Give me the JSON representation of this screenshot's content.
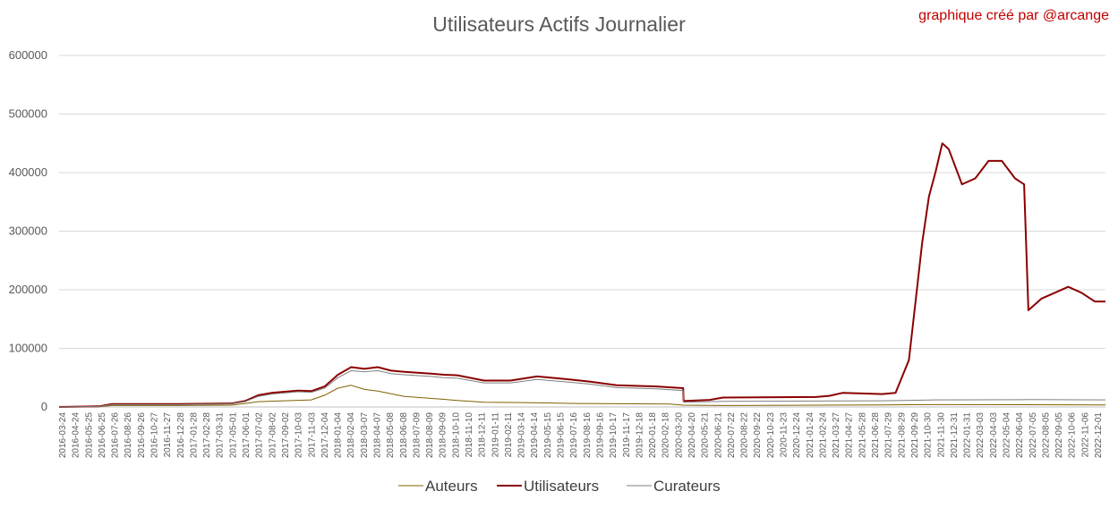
{
  "credit": "graphique créé par @arcange",
  "colors": {
    "Auteurs": "#7f6000",
    "Utilisateurs": "#8b0000",
    "Curateurs": "#7f7f7f",
    "grid": "#d9d9d9"
  },
  "chart_data": {
    "type": "line",
    "title": "Utilisateurs Actifs Journalier",
    "xlabel": "",
    "ylabel": "",
    "ylim": [
      0,
      600000
    ],
    "yticks": [
      "0",
      "100000",
      "200000",
      "300000",
      "400000",
      "500000",
      "600000"
    ],
    "grid": true,
    "legend": "bottom",
    "x_range": [
      "2016-03-24",
      "2022-12-01"
    ],
    "x_tick_labels": [
      "2016-03-24",
      "2016-04-24",
      "2016-05-25",
      "2016-06-25",
      "2016-07-26",
      "2016-08-26",
      "2016-09-26",
      "2016-10-27",
      "2016-11-27",
      "2016-12-28",
      "2017-01-28",
      "2017-02-28",
      "2017-03-31",
      "2017-05-01",
      "2017-06-01",
      "2017-07-02",
      "2017-08-02",
      "2017-09-02",
      "2017-10-03",
      "2017-11-03",
      "2017-12-04",
      "2018-01-04",
      "2018-02-04",
      "2018-03-07",
      "2018-04-07",
      "2018-05-08",
      "2018-06-08",
      "2018-07-09",
      "2018-08-09",
      "2018-09-09",
      "2018-10-10",
      "2018-11-10",
      "2018-12-11",
      "2019-01-11",
      "2019-02-11",
      "2019-03-14",
      "2019-04-14",
      "2019-05-15",
      "2019-06-15",
      "2019-07-16",
      "2019-08-16",
      "2019-09-16",
      "2019-10-17",
      "2019-11-17",
      "2019-12-18",
      "2020-01-18",
      "2020-02-18",
      "2020-03-20",
      "2020-04-20",
      "2020-05-21",
      "2020-06-21",
      "2020-07-22",
      "2020-08-22",
      "2020-09-22",
      "2020-10-23",
      "2020-11-23",
      "2020-12-24",
      "2021-01-24",
      "2021-02-24",
      "2021-03-27",
      "2021-04-27",
      "2021-05-28",
      "2021-06-28",
      "2021-07-29",
      "2021-08-29",
      "2021-09-29",
      "2021-10-30",
      "2021-11-30",
      "2021-12-31",
      "2022-01-31",
      "2022-03-03",
      "2022-04-03",
      "2022-05-04",
      "2022-06-04",
      "2022-07-05",
      "2022-08-05",
      "2022-09-05",
      "2022-10-06",
      "2022-11-06",
      "2022-12-01"
    ],
    "series": [
      {
        "name": "Auteurs",
        "points": [
          [
            "2016-03-24",
            0
          ],
          [
            "2016-06-25",
            500
          ],
          [
            "2016-07-26",
            2500
          ],
          [
            "2016-12-28",
            2500
          ],
          [
            "2017-05-01",
            3000
          ],
          [
            "2017-06-01",
            6000
          ],
          [
            "2017-07-02",
            9000
          ],
          [
            "2017-11-03",
            12000
          ],
          [
            "2017-12-04",
            20000
          ],
          [
            "2018-01-04",
            32000
          ],
          [
            "2018-02-04",
            37000
          ],
          [
            "2018-03-07",
            30000
          ],
          [
            "2018-04-07",
            27000
          ],
          [
            "2018-06-08",
            18000
          ],
          [
            "2018-09-09",
            13000
          ],
          [
            "2018-10-10",
            11000
          ],
          [
            "2018-12-11",
            8000
          ],
          [
            "2019-03-14",
            7500
          ],
          [
            "2019-07-16",
            6000
          ],
          [
            "2019-10-17",
            5500
          ],
          [
            "2020-02-18",
            5000
          ],
          [
            "2020-03-20",
            3000
          ],
          [
            "2020-06-21",
            2500
          ],
          [
            "2021-01-24",
            3000
          ],
          [
            "2021-06-28",
            3500
          ],
          [
            "2021-10-30",
            4000
          ],
          [
            "2022-12-01",
            3500
          ]
        ]
      },
      {
        "name": "Utilisateurs",
        "points": [
          [
            "2016-03-24",
            0
          ],
          [
            "2016-06-25",
            1000
          ],
          [
            "2016-07-26",
            5000
          ],
          [
            "2016-12-28",
            5000
          ],
          [
            "2017-05-01",
            6000
          ],
          [
            "2017-06-01",
            10000
          ],
          [
            "2017-07-02",
            20000
          ],
          [
            "2017-08-02",
            24000
          ],
          [
            "2017-10-03",
            28000
          ],
          [
            "2017-11-03",
            27000
          ],
          [
            "2017-12-04",
            35000
          ],
          [
            "2018-01-04",
            55000
          ],
          [
            "2018-02-04",
            68000
          ],
          [
            "2018-03-07",
            65000
          ],
          [
            "2018-04-07",
            68000
          ],
          [
            "2018-05-08",
            62000
          ],
          [
            "2018-06-08",
            60000
          ],
          [
            "2018-08-09",
            57000
          ],
          [
            "2018-09-09",
            55000
          ],
          [
            "2018-10-10",
            54000
          ],
          [
            "2018-12-11",
            45000
          ],
          [
            "2019-02-11",
            45000
          ],
          [
            "2019-04-14",
            52000
          ],
          [
            "2019-06-15",
            48000
          ],
          [
            "2019-08-16",
            43000
          ],
          [
            "2019-10-17",
            37000
          ],
          [
            "2020-01-18",
            35000
          ],
          [
            "2020-03-20",
            32000
          ],
          [
            "2020-03-21",
            10000
          ],
          [
            "2020-05-21",
            12000
          ],
          [
            "2020-06-21",
            16000
          ],
          [
            "2021-01-24",
            17000
          ],
          [
            "2021-02-24",
            19000
          ],
          [
            "2021-03-27",
            24000
          ],
          [
            "2021-06-28",
            22000
          ],
          [
            "2021-07-29",
            24000
          ],
          [
            "2021-08-29",
            80000
          ],
          [
            "2021-09-12",
            170000
          ],
          [
            "2021-09-29",
            280000
          ],
          [
            "2021-10-15",
            360000
          ],
          [
            "2021-10-30",
            400000
          ],
          [
            "2021-11-15",
            450000
          ],
          [
            "2021-11-30",
            440000
          ],
          [
            "2021-12-31",
            380000
          ],
          [
            "2022-01-31",
            390000
          ],
          [
            "2022-03-03",
            420000
          ],
          [
            "2022-04-03",
            420000
          ],
          [
            "2022-05-04",
            390000
          ],
          [
            "2022-05-25",
            380000
          ],
          [
            "2022-06-04",
            165000
          ],
          [
            "2022-07-05",
            185000
          ],
          [
            "2022-08-05",
            195000
          ],
          [
            "2022-09-05",
            205000
          ],
          [
            "2022-10-06",
            195000
          ],
          [
            "2022-11-06",
            180000
          ],
          [
            "2022-12-01",
            180000
          ]
        ]
      },
      {
        "name": "Curateurs",
        "points": [
          [
            "2016-03-24",
            0
          ],
          [
            "2016-06-25",
            800
          ],
          [
            "2016-07-26",
            4000
          ],
          [
            "2016-12-28",
            4000
          ],
          [
            "2017-05-01",
            5500
          ],
          [
            "2017-06-01",
            9000
          ],
          [
            "2017-07-02",
            18000
          ],
          [
            "2017-08-02",
            22000
          ],
          [
            "2017-10-03",
            26000
          ],
          [
            "2017-11-03",
            25000
          ],
          [
            "2017-12-04",
            32000
          ],
          [
            "2018-01-04",
            50000
          ],
          [
            "2018-02-04",
            62000
          ],
          [
            "2018-03-07",
            60000
          ],
          [
            "2018-04-07",
            62000
          ],
          [
            "2018-05-08",
            57000
          ],
          [
            "2018-06-08",
            55000
          ],
          [
            "2018-08-09",
            52000
          ],
          [
            "2018-09-09",
            50000
          ],
          [
            "2018-10-10",
            49000
          ],
          [
            "2018-12-11",
            41000
          ],
          [
            "2019-02-11",
            41000
          ],
          [
            "2019-04-14",
            47000
          ],
          [
            "2019-06-15",
            43000
          ],
          [
            "2019-08-16",
            39000
          ],
          [
            "2019-10-17",
            33000
          ],
          [
            "2020-01-18",
            31000
          ],
          [
            "2020-03-20",
            28000
          ],
          [
            "2020-03-21",
            8000
          ],
          [
            "2020-05-21",
            9000
          ],
          [
            "2020-06-21",
            9500
          ],
          [
            "2021-01-24",
            10000
          ],
          [
            "2021-06-28",
            10500
          ],
          [
            "2021-10-30",
            12000
          ],
          [
            "2022-06-04",
            12500
          ],
          [
            "2022-12-01",
            12000
          ]
        ]
      }
    ]
  }
}
